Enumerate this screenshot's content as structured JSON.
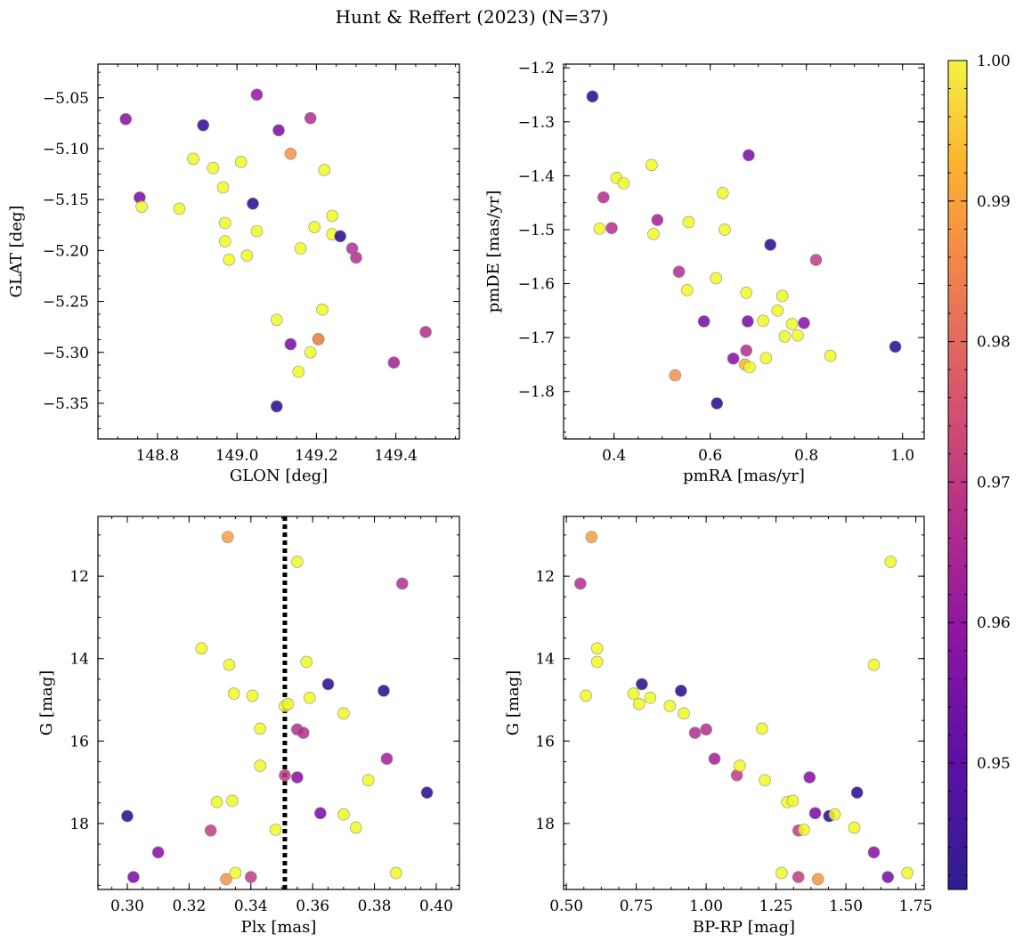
{
  "title": "Hunt & Reffert (2023) (N=37)",
  "colorbar": {
    "min": 0.941,
    "max": 1.0,
    "ticks": [
      0.95,
      0.96,
      0.97,
      0.98,
      0.99,
      1.0
    ],
    "tick_labels": [
      "0.95",
      "0.96",
      "0.97",
      "0.98",
      "0.99",
      "1.00"
    ],
    "colormap": "plasma"
  },
  "chart_data": [
    {
      "id": "glon-glat",
      "type": "scatter",
      "xlabel": "GLON [deg]",
      "ylabel": "GLAT [deg]",
      "xlim": [
        148.65,
        149.56
      ],
      "ylim": [
        -5.385,
        -5.017
      ],
      "yinverted": false,
      "xticks": [
        148.8,
        149.0,
        149.2,
        149.4
      ],
      "xtick_labels": [
        "148.8",
        "149.0",
        "149.2",
        "149.4"
      ],
      "yticks": [
        -5.05,
        -5.1,
        -5.15,
        -5.2,
        -5.25,
        -5.3,
        -5.35
      ],
      "ytick_labels": [
        "−5.05",
        "−5.10",
        "−5.15",
        "−5.20",
        "−5.25",
        "−5.30",
        "−5.35"
      ],
      "points": [
        [
          148.72,
          -5.071,
          0.958
        ],
        [
          148.755,
          -5.148,
          0.955
        ],
        [
          148.76,
          -5.157,
          1.0
        ],
        [
          148.855,
          -5.159,
          1.0
        ],
        [
          148.89,
          -5.11,
          1.0
        ],
        [
          148.915,
          -5.077,
          0.945
        ],
        [
          148.94,
          -5.119,
          1.0
        ],
        [
          148.965,
          -5.138,
          1.0
        ],
        [
          148.97,
          -5.173,
          1.0
        ],
        [
          148.97,
          -5.191,
          1.0
        ],
        [
          148.98,
          -5.209,
          1.0
        ],
        [
          149.01,
          -5.113,
          1.0
        ],
        [
          149.025,
          -5.205,
          1.0
        ],
        [
          149.04,
          -5.154,
          0.944
        ],
        [
          149.05,
          -5.181,
          1.0
        ],
        [
          149.05,
          -5.047,
          0.96
        ],
        [
          149.1,
          -5.268,
          1.0
        ],
        [
          149.1,
          -5.353,
          0.944
        ],
        [
          149.105,
          -5.082,
          0.955
        ],
        [
          149.135,
          -5.292,
          0.955
        ],
        [
          149.135,
          -5.105,
          0.984
        ],
        [
          149.155,
          -5.319,
          1.0
        ],
        [
          149.16,
          -5.198,
          1.0
        ],
        [
          149.185,
          -5.07,
          0.965
        ],
        [
          149.185,
          -5.3,
          1.0
        ],
        [
          149.195,
          -5.177,
          1.0
        ],
        [
          149.205,
          -5.287,
          1.0
        ],
        [
          149.205,
          -5.287,
          0.98
        ],
        [
          149.215,
          -5.258,
          1.0
        ],
        [
          149.22,
          -5.121,
          1.0
        ],
        [
          149.24,
          -5.166,
          1.0
        ],
        [
          149.24,
          -5.184,
          1.0
        ],
        [
          149.26,
          -5.186,
          0.944
        ],
        [
          149.29,
          -5.198,
          0.965
        ],
        [
          149.3,
          -5.207,
          0.965
        ],
        [
          149.395,
          -5.31,
          0.962
        ],
        [
          149.475,
          -5.28,
          0.965
        ]
      ]
    },
    {
      "id": "pmra-pmde",
      "type": "scatter",
      "xlabel": "pmRA [mas/yr]",
      "ylabel": "pmDE [mas/yr]",
      "xlim": [
        0.295,
        1.045
      ],
      "ylim": [
        -1.888,
        -1.193
      ],
      "yinverted": false,
      "xticks": [
        0.4,
        0.6,
        0.8,
        1.0
      ],
      "xtick_labels": [
        "0.4",
        "0.6",
        "0.8",
        "1.0"
      ],
      "yticks": [
        -1.2,
        -1.3,
        -1.4,
        -1.5,
        -1.6,
        -1.7,
        -1.8
      ],
      "ytick_labels": [
        "−1.2",
        "−1.3",
        "−1.4",
        "−1.5",
        "−1.6",
        "−1.7",
        "−1.8"
      ],
      "points": [
        [
          0.355,
          -1.253,
          0.944
        ],
        [
          0.37,
          -1.498,
          1.0
        ],
        [
          0.378,
          -1.44,
          0.965
        ],
        [
          0.395,
          -1.497,
          0.965
        ],
        [
          0.405,
          -1.404,
          1.0
        ],
        [
          0.42,
          -1.414,
          1.0
        ],
        [
          0.478,
          -1.38,
          1.0
        ],
        [
          0.482,
          -1.508,
          1.0
        ],
        [
          0.49,
          -1.482,
          0.962
        ],
        [
          0.527,
          -1.77,
          0.984
        ],
        [
          0.535,
          -1.578,
          0.965
        ],
        [
          0.552,
          -1.612,
          1.0
        ],
        [
          0.555,
          -1.486,
          1.0
        ],
        [
          0.587,
          -1.67,
          0.955
        ],
        [
          0.612,
          -1.59,
          1.0
        ],
        [
          0.614,
          -1.822,
          0.944
        ],
        [
          0.626,
          -1.432,
          1.0
        ],
        [
          0.63,
          -1.5,
          1.0
        ],
        [
          0.648,
          -1.739,
          0.958
        ],
        [
          0.672,
          -1.75,
          0.99
        ],
        [
          0.675,
          -1.617,
          1.0
        ],
        [
          0.675,
          -1.724,
          0.965
        ],
        [
          0.678,
          -1.67,
          0.955
        ],
        [
          0.68,
          -1.362,
          0.955
        ],
        [
          0.682,
          -1.755,
          1.0
        ],
        [
          0.71,
          -1.669,
          1.0
        ],
        [
          0.716,
          -1.738,
          1.0
        ],
        [
          0.725,
          -1.528,
          0.944
        ],
        [
          0.74,
          -1.65,
          1.0
        ],
        [
          0.75,
          -1.623,
          1.0
        ],
        [
          0.755,
          -1.698,
          1.0
        ],
        [
          0.77,
          -1.675,
          1.0
        ],
        [
          0.782,
          -1.696,
          1.0
        ],
        [
          0.795,
          -1.673,
          0.958
        ],
        [
          0.82,
          -1.556,
          0.968
        ],
        [
          0.85,
          -1.734,
          1.0
        ],
        [
          0.985,
          -1.717,
          0.944
        ]
      ]
    },
    {
      "id": "plx-g",
      "type": "scatter",
      "xlabel": "Plx [mas]",
      "ylabel": "G [mag]",
      "xlim": [
        0.2905,
        0.4075
      ],
      "ylim": [
        10.55,
        19.6
      ],
      "yinverted": true,
      "reference_line": {
        "x": 0.351,
        "style": "dotted"
      },
      "xticks": [
        0.3,
        0.32,
        0.34,
        0.36,
        0.38,
        0.4
      ],
      "xtick_labels": [
        "0.30",
        "0.32",
        "0.34",
        "0.36",
        "0.38",
        "0.40"
      ],
      "yticks": [
        12,
        14,
        16,
        18
      ],
      "ytick_labels": [
        "12",
        "14",
        "16",
        "18"
      ],
      "points": [
        [
          0.3,
          17.82,
          0.944
        ],
        [
          0.302,
          19.3,
          0.955
        ],
        [
          0.31,
          18.7,
          0.958
        ],
        [
          0.324,
          13.75,
          1.0
        ],
        [
          0.327,
          18.17,
          0.968
        ],
        [
          0.329,
          17.48,
          1.0
        ],
        [
          0.332,
          19.35,
          0.985
        ],
        [
          0.3325,
          11.05,
          0.987
        ],
        [
          0.333,
          14.15,
          1.0
        ],
        [
          0.334,
          17.45,
          1.0
        ],
        [
          0.3345,
          14.85,
          1.0
        ],
        [
          0.335,
          19.2,
          1.0
        ],
        [
          0.34,
          19.3,
          0.968
        ],
        [
          0.3405,
          14.9,
          1.0
        ],
        [
          0.343,
          15.7,
          1.0
        ],
        [
          0.343,
          16.6,
          1.0
        ],
        [
          0.348,
          18.15,
          1.0
        ],
        [
          0.351,
          16.83,
          0.968
        ],
        [
          0.351,
          15.15,
          1.0
        ],
        [
          0.352,
          15.1,
          1.0
        ],
        [
          0.355,
          11.65,
          1.0
        ],
        [
          0.355,
          15.72,
          0.965
        ],
        [
          0.355,
          16.88,
          0.958
        ],
        [
          0.357,
          15.8,
          0.965
        ],
        [
          0.358,
          14.08,
          1.0
        ],
        [
          0.359,
          14.95,
          1.0
        ],
        [
          0.3625,
          17.75,
          0.955
        ],
        [
          0.365,
          14.62,
          0.944
        ],
        [
          0.37,
          15.33,
          1.0
        ],
        [
          0.37,
          17.78,
          1.0
        ],
        [
          0.374,
          18.1,
          1.0
        ],
        [
          0.378,
          16.95,
          1.0
        ],
        [
          0.383,
          14.78,
          0.944
        ],
        [
          0.384,
          16.43,
          0.962
        ],
        [
          0.387,
          19.2,
          1.0
        ],
        [
          0.389,
          12.18,
          0.965
        ],
        [
          0.397,
          17.25,
          0.944
        ]
      ]
    },
    {
      "id": "bprp-g",
      "type": "scatter",
      "xlabel": "BP-RP [mag]",
      "ylabel": "G [mag]",
      "xlim": [
        0.49,
        1.78
      ],
      "ylim": [
        10.55,
        19.6
      ],
      "yinverted": true,
      "xticks": [
        0.5,
        0.75,
        1.0,
        1.25,
        1.5,
        1.75
      ],
      "xtick_labels": [
        "0.50",
        "0.75",
        "1.00",
        "1.25",
        "1.50",
        "1.75"
      ],
      "yticks": [
        12,
        14,
        16,
        18
      ],
      "ytick_labels": [
        "12",
        "14",
        "16",
        "18"
      ],
      "points": [
        [
          0.55,
          12.18,
          0.965
        ],
        [
          0.57,
          14.9,
          1.0
        ],
        [
          0.59,
          11.05,
          0.987
        ],
        [
          0.61,
          13.75,
          1.0
        ],
        [
          0.61,
          14.08,
          1.0
        ],
        [
          0.74,
          14.85,
          1.0
        ],
        [
          0.76,
          15.1,
          1.0
        ],
        [
          0.77,
          14.62,
          0.944
        ],
        [
          0.8,
          14.95,
          1.0
        ],
        [
          0.87,
          15.15,
          1.0
        ],
        [
          0.91,
          14.78,
          0.944
        ],
        [
          0.92,
          15.33,
          1.0
        ],
        [
          0.96,
          15.8,
          0.965
        ],
        [
          1.0,
          15.72,
          0.965
        ],
        [
          1.03,
          16.43,
          0.962
        ],
        [
          1.11,
          16.83,
          0.968
        ],
        [
          1.12,
          16.6,
          1.0
        ],
        [
          1.2,
          15.7,
          1.0
        ],
        [
          1.21,
          16.95,
          1.0
        ],
        [
          1.27,
          19.2,
          1.0
        ],
        [
          1.29,
          17.48,
          1.0
        ],
        [
          1.31,
          17.45,
          1.0
        ],
        [
          1.33,
          18.17,
          0.968
        ],
        [
          1.33,
          19.3,
          0.968
        ],
        [
          1.35,
          18.15,
          1.0
        ],
        [
          1.37,
          16.88,
          0.958
        ],
        [
          1.39,
          17.75,
          0.955
        ],
        [
          1.4,
          19.35,
          0.985
        ],
        [
          1.44,
          17.82,
          0.944
        ],
        [
          1.46,
          17.78,
          1.0
        ],
        [
          1.53,
          18.1,
          1.0
        ],
        [
          1.54,
          17.25,
          0.944
        ],
        [
          1.6,
          14.15,
          1.0
        ],
        [
          1.6,
          18.7,
          0.958
        ],
        [
          1.65,
          19.3,
          0.955
        ],
        [
          1.66,
          11.65,
          1.0
        ],
        [
          1.72,
          19.2,
          1.0
        ]
      ]
    }
  ]
}
